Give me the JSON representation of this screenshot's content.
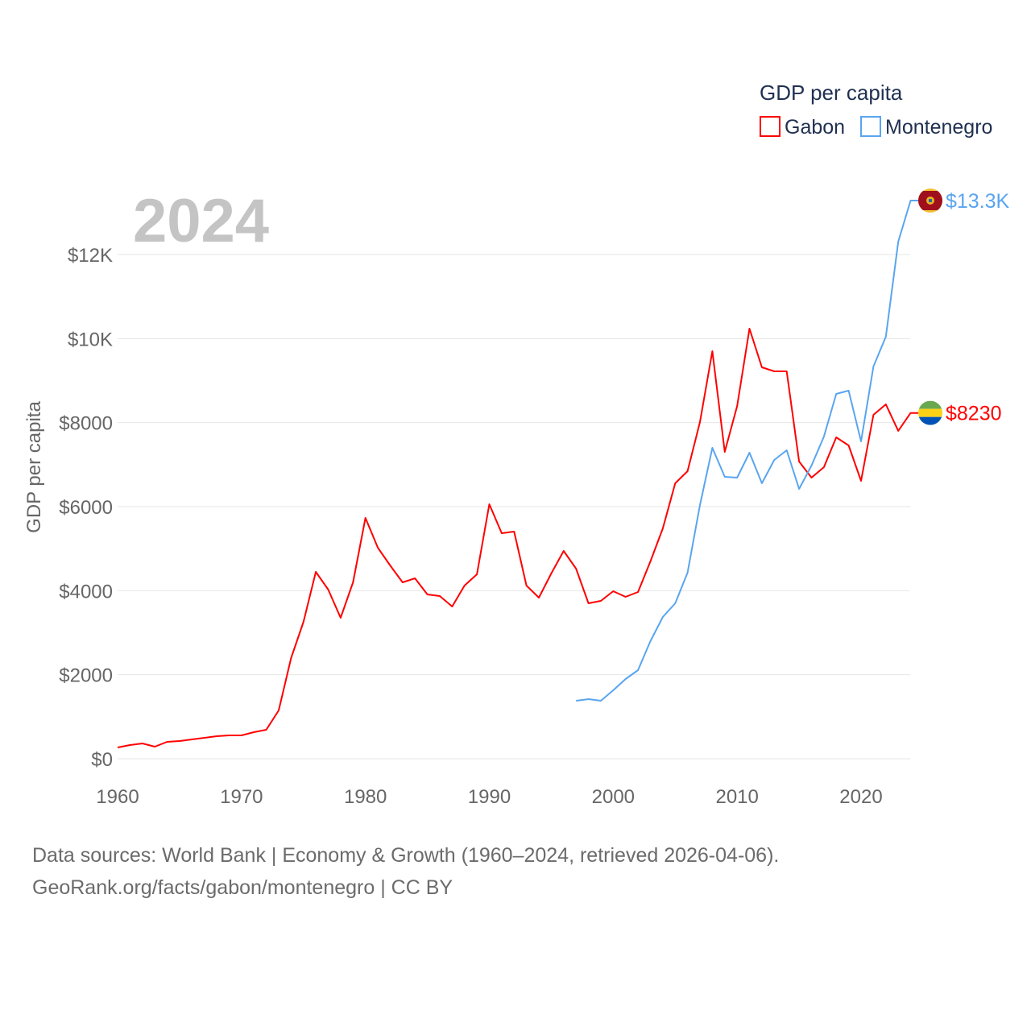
{
  "chart_data": {
    "type": "line",
    "title": "GDP per capita",
    "watermark_year": "2024",
    "ylabel": "GDP per capita",
    "xlabel": "",
    "xlim": [
      1960,
      2024
    ],
    "ylim": [
      0,
      13300
    ],
    "x_ticks": [
      1960,
      1970,
      1980,
      1990,
      2000,
      2010,
      2020
    ],
    "x_tick_labels": [
      "1960",
      "1970",
      "1980",
      "1990",
      "2000",
      "2010",
      "2020"
    ],
    "y_ticks": [
      0,
      2000,
      4000,
      6000,
      8000,
      10000,
      12000
    ],
    "y_tick_labels": [
      "$0",
      "$2000",
      "$4000",
      "$6000",
      "$8000",
      "$10K",
      "$12K"
    ],
    "grid": true,
    "legend_position": "top-right",
    "series": [
      {
        "name": "Gabon",
        "color": "#ff0000",
        "end_label": "$8230",
        "flag": "gabon-flag",
        "x": [
          1960,
          1961,
          1962,
          1963,
          1964,
          1965,
          1966,
          1967,
          1968,
          1969,
          1970,
          1971,
          1972,
          1973,
          1974,
          1975,
          1976,
          1977,
          1978,
          1979,
          1980,
          1981,
          1982,
          1983,
          1984,
          1985,
          1986,
          1987,
          1988,
          1989,
          1990,
          1991,
          1992,
          1993,
          1994,
          1995,
          1996,
          1997,
          1998,
          1999,
          2000,
          2001,
          2002,
          2003,
          2004,
          2005,
          2006,
          2007,
          2008,
          2009,
          2010,
          2011,
          2012,
          2013,
          2014,
          2015,
          2016,
          2017,
          2018,
          2019,
          2020,
          2021,
          2022,
          2023,
          2024
        ],
        "values": [
          268,
          326,
          364,
          288,
          403,
          422,
          460,
          498,
          537,
          556,
          556,
          633,
          690,
          1150,
          2396,
          3259,
          4447,
          4026,
          3355,
          4198,
          5732,
          5022,
          4600,
          4198,
          4294,
          3911,
          3872,
          3623,
          4122,
          4390,
          6058,
          5368,
          5406,
          4122,
          3834,
          4409,
          4946,
          4524,
          3700,
          3757,
          3987,
          3853,
          3968,
          4696,
          5482,
          6556,
          6844,
          8013,
          9700,
          7304,
          8397,
          10237,
          9317,
          9221,
          9221,
          7074,
          6690,
          6940,
          7649,
          7457,
          6614,
          8186,
          8435,
          7803,
          8230
        ]
      },
      {
        "name": "Montenegro",
        "color": "#5aa5f0",
        "end_label": "$13.3K",
        "flag": "montenegro-flag",
        "x": [
          1997,
          1998,
          1999,
          2000,
          2001,
          2002,
          2003,
          2004,
          2005,
          2006,
          2007,
          2008,
          2009,
          2010,
          2011,
          2012,
          2013,
          2014,
          2015,
          2016,
          2017,
          2018,
          2019,
          2020,
          2021,
          2022,
          2023,
          2024
        ],
        "values": [
          1380,
          1419,
          1380,
          1629,
          1898,
          2109,
          2799,
          3374,
          3700,
          4428,
          6038,
          7400,
          6710,
          6690,
          7285,
          6556,
          7112,
          7342,
          6422,
          6978,
          7668,
          8684,
          8761,
          7553,
          9336,
          10045,
          12307,
          13285
        ]
      }
    ]
  },
  "source": {
    "line1": "Data sources: World Bank | Economy & Growth (1960–2024, retrieved 2026-04-06).",
    "line2": "GeoRank.org/facts/gabon/montenegro | CC BY"
  }
}
